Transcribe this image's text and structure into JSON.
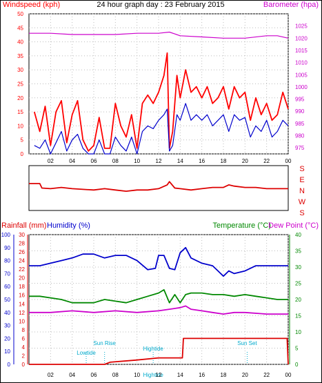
{
  "title": "24 hour graph day : 23 February 2015",
  "colors": {
    "wind": "#ff0000",
    "windDark": "#0000cc",
    "baro": "#cc00cc",
    "dir": "#dd0000",
    "rain": "#dd0000",
    "humidity": "#0000cc",
    "temp": "#008800",
    "dew": "#cc00cc",
    "astro": "#00aacc",
    "frame": "#000000"
  },
  "chart_data": [
    {
      "type": "line",
      "labels": {
        "left": "Windspeed (kph)",
        "right": "Barometer (hpa)"
      },
      "x_ticks": [
        "02",
        "04",
        "06",
        "08",
        "10",
        "12",
        "14",
        "16",
        "18",
        "20",
        "22",
        "00"
      ],
      "y_left": {
        "ticks": [
          "0",
          "5",
          "10",
          "15",
          "20",
          "25",
          "30",
          "35",
          "40",
          "45",
          "50"
        ],
        "range": [
          0,
          50
        ]
      },
      "y_right": {
        "ticks": [
          "975",
          "980",
          "985",
          "990",
          "995",
          "1000",
          "1005",
          "1010",
          "1015",
          "1020",
          "1025"
        ],
        "range": [
          972.5,
          1030
        ]
      },
      "series": [
        {
          "name": "Gust",
          "axis": "left",
          "x": [
            0.5,
            1,
            1.5,
            2,
            2.5,
            3,
            3.5,
            4,
            4.5,
            5,
            5.5,
            6,
            6.5,
            7,
            7.5,
            8,
            8.5,
            9,
            9.5,
            10,
            10.5,
            11,
            11.5,
            12,
            12.5,
            12.8,
            13,
            13.3,
            13.7,
            14,
            14.5,
            15,
            15.5,
            16,
            16.5,
            17,
            17.5,
            18,
            18.5,
            19,
            19.5,
            20,
            20.5,
            21,
            21.5,
            22,
            22.5,
            23,
            23.5,
            24
          ],
          "y": [
            15,
            8,
            17,
            3,
            15,
            19,
            4,
            14,
            19,
            5,
            1,
            3,
            13,
            2,
            2,
            18,
            10,
            6,
            14,
            2,
            18,
            21,
            18,
            22,
            28,
            36,
            2,
            8,
            28,
            20,
            30,
            22,
            24,
            20,
            24,
            18,
            20,
            24,
            16,
            24,
            20,
            22,
            12,
            20,
            14,
            18,
            12,
            14,
            22,
            16
          ]
        },
        {
          "name": "Average",
          "axis": "left",
          "x": [
            0.5,
            1,
            1.5,
            2,
            2.5,
            3,
            3.5,
            4,
            4.5,
            5,
            5.5,
            6,
            6.5,
            7,
            7.5,
            8,
            8.5,
            9,
            9.5,
            10,
            10.5,
            11,
            11.5,
            12,
            12.5,
            12.8,
            13,
            13.3,
            13.7,
            14,
            14.5,
            15,
            15.5,
            16,
            16.5,
            17,
            17.5,
            18,
            18.5,
            19,
            19.5,
            20,
            20.5,
            21,
            21.5,
            22,
            22.5,
            23,
            23.5,
            24
          ],
          "y": [
            3,
            2,
            5,
            0,
            4,
            8,
            1,
            5,
            7,
            2,
            0,
            0,
            5,
            0,
            0,
            6,
            3,
            1,
            6,
            0,
            8,
            10,
            9,
            12,
            14,
            16,
            1,
            3,
            14,
            12,
            18,
            12,
            14,
            12,
            14,
            10,
            12,
            14,
            8,
            14,
            12,
            13,
            6,
            10,
            8,
            12,
            6,
            8,
            12,
            10
          ]
        },
        {
          "name": "Barometer",
          "axis": "right",
          "x": [
            0,
            2,
            4,
            6,
            8,
            10,
            12,
            13,
            14,
            16,
            18,
            20,
            22,
            23,
            24
          ],
          "y": [
            1022,
            1022,
            1021.5,
            1021.5,
            1021.5,
            1022,
            1022,
            1022.5,
            1021,
            1020.5,
            1020,
            1020,
            1021,
            1021,
            1020
          ]
        }
      ]
    },
    {
      "type": "line",
      "labels": {
        "right": [
          "S",
          "E",
          "N",
          "W",
          "S"
        ]
      },
      "series": [
        {
          "name": "Wind direction",
          "x": [
            0,
            1,
            1.2,
            2,
            3,
            4,
            5,
            6,
            7,
            8,
            9,
            10,
            11,
            12,
            12.8,
            13,
            13.5,
            14,
            15,
            16,
            17,
            18,
            18.5,
            19,
            20,
            21,
            22,
            23,
            24
          ],
          "y": [
            158,
            158,
            165,
            166,
            164,
            166,
            167,
            168,
            166,
            168,
            170,
            168,
            168,
            166,
            160,
            155,
            165,
            166,
            168,
            166,
            164,
            164,
            160,
            162,
            164,
            164,
            166,
            166,
            166
          ]
        }
      ]
    },
    {
      "type": "line",
      "labels": {
        "rainfall": "Rainfall (mm)",
        "humidity": "Humidity (%)",
        "temperature": "Temperature (°C)",
        "dewpoint": "Dew Point (°C)"
      },
      "x_ticks": [
        "02",
        "04",
        "06",
        "08",
        "10",
        "12",
        "14",
        "16",
        "18",
        "20",
        "22",
        "00"
      ],
      "y_humidity": {
        "ticks": [
          "0",
          "10",
          "20",
          "30",
          "40",
          "50",
          "60",
          "70",
          "80",
          "90",
          "100"
        ],
        "range": [
          0,
          100
        ]
      },
      "y_rain": {
        "ticks": [
          "0",
          "2",
          "4",
          "6",
          "8",
          "10",
          "12",
          "14",
          "16",
          "18",
          "20",
          "22",
          "24",
          "26",
          "28",
          "30"
        ],
        "range": [
          0,
          30
        ]
      },
      "y_temp": {
        "ticks": [
          "0",
          "5",
          "10",
          "15",
          "20",
          "25",
          "30",
          "35",
          "40"
        ],
        "range": [
          0,
          40
        ]
      },
      "astro": [
        {
          "label": "Lowtide",
          "x": 5.3
        },
        {
          "label": "Sun Rise",
          "x": 7.0
        },
        {
          "label": "Hightide",
          "x": 11.5
        },
        {
          "label": "Sun Set",
          "x": 20.2
        }
      ],
      "series": [
        {
          "name": "Humidity",
          "axis": "humidity",
          "x": [
            0,
            1,
            2,
            3,
            4,
            5,
            6,
            7,
            8,
            9,
            10,
            11,
            11.7,
            12,
            12.5,
            13,
            13.5,
            14,
            14.5,
            15,
            16,
            17,
            17.5,
            18,
            18.5,
            19,
            20,
            21,
            22,
            23,
            24
          ],
          "y": [
            76,
            76,
            78,
            80,
            82,
            85,
            85,
            82,
            84,
            84,
            80,
            73,
            74,
            84,
            84,
            74,
            73,
            86,
            90,
            82,
            78,
            76,
            72,
            68,
            72,
            70,
            72,
            76,
            76,
            76,
            76
          ]
        },
        {
          "name": "Temperature",
          "axis": "temp",
          "x": [
            0,
            1,
            2,
            3,
            4,
            5,
            6,
            7,
            8,
            9,
            10,
            11,
            12,
            12.5,
            13,
            13.5,
            14,
            14.5,
            15,
            16,
            17,
            18,
            19,
            20,
            21,
            22,
            23,
            24
          ],
          "y": [
            21,
            21,
            20.5,
            20,
            19,
            19,
            19,
            20,
            19.5,
            19,
            20,
            21,
            22,
            23,
            19,
            21.5,
            19,
            21.5,
            22,
            22,
            21.5,
            21.5,
            21,
            21.5,
            21,
            20.5,
            20,
            20
          ]
        },
        {
          "name": "Dew Point",
          "axis": "temp",
          "x": [
            0,
            2,
            4,
            6,
            8,
            10,
            12,
            13,
            14,
            14.5,
            15,
            16,
            17,
            18,
            19,
            20,
            22,
            24
          ],
          "y": [
            16,
            16,
            16.5,
            16,
            16.5,
            16,
            16.5,
            17,
            17.5,
            18,
            17,
            16.5,
            16,
            15.5,
            16,
            16,
            15.5,
            15.5
          ]
        },
        {
          "name": "Rainfall",
          "axis": "rain",
          "x": [
            0,
            7,
            7.5,
            10,
            12,
            12.5,
            14.2,
            14.3,
            20,
            23.9,
            24
          ],
          "y": [
            0,
            0,
            0.5,
            1,
            1.5,
            1.5,
            1.5,
            6,
            6,
            6,
            0
          ]
        }
      ]
    }
  ]
}
